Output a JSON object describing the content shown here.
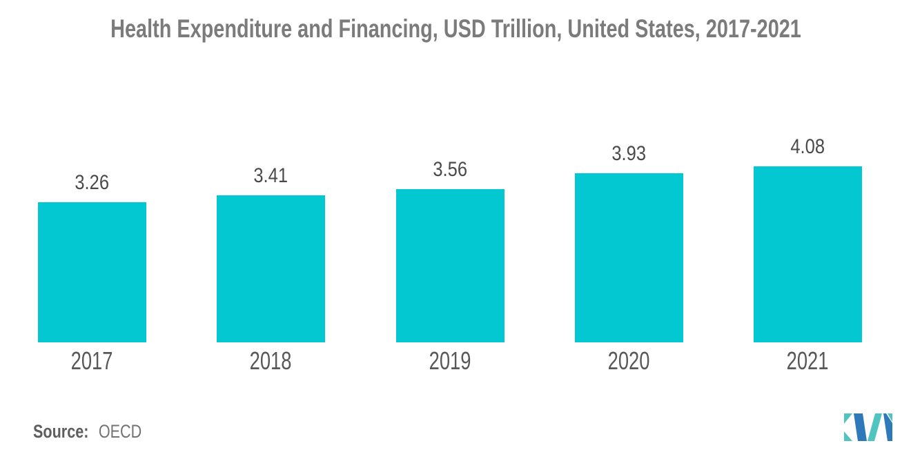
{
  "title": "Health Expenditure and Financing, USD Trillion, United States, 2017-2021",
  "source": {
    "label": "Source:",
    "value": "OECD"
  },
  "colors": {
    "bar": "#04C8D1",
    "logo_blue": "#2E79B9",
    "logo_teal": "#50C5BF"
  },
  "logo": {
    "name": "mordor-intelligence-logo"
  },
  "chart_data": {
    "type": "bar",
    "categories": [
      "2017",
      "2018",
      "2019",
      "2020",
      "2021"
    ],
    "values": [
      3.26,
      3.41,
      3.56,
      3.93,
      4.08
    ],
    "value_labels": [
      "3.26",
      "3.41",
      "3.56",
      "3.93",
      "4.08"
    ],
    "title": "Health Expenditure and Financing, USD Trillion, United States, 2017-2021",
    "xlabel": "",
    "ylabel": "",
    "ylim": [
      0,
      4.6
    ],
    "grid": false,
    "legend": null,
    "bar_color": "#04C8D1",
    "data_labels_position": "above-bars",
    "source": "OECD"
  }
}
